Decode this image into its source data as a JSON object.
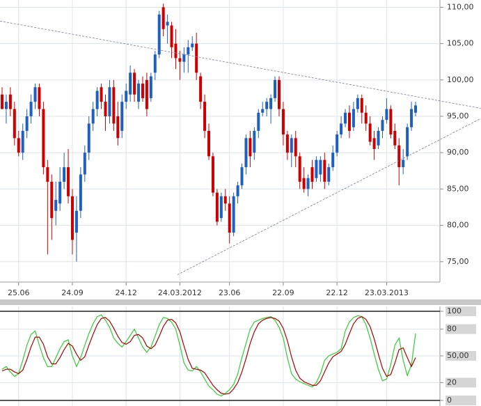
{
  "chart_data": [
    {
      "type": "candlestick",
      "categories": [
        null,
        null,
        null,
        null,
        "25.06",
        null,
        null,
        null,
        null,
        null,
        null,
        null,
        null,
        null,
        null,
        null,
        null,
        "24.09",
        null,
        null,
        null,
        null,
        null,
        null,
        null,
        null,
        null,
        null,
        null,
        null,
        "24.12",
        null,
        null,
        null,
        null,
        null,
        null,
        null,
        null,
        null,
        null,
        null,
        null,
        "24.03.2012",
        null,
        null,
        null,
        null,
        null,
        null,
        null,
        null,
        null,
        null,
        null,
        "23.06",
        null,
        null,
        null,
        null,
        null,
        null,
        null,
        null,
        null,
        null,
        null,
        null,
        "22.09",
        null,
        null,
        null,
        null,
        null,
        null,
        null,
        null,
        null,
        null,
        null,
        null,
        "22.12",
        null,
        null,
        null,
        null,
        null,
        null,
        null,
        null,
        null,
        null,
        null,
        "23.03.2013",
        null,
        null,
        null,
        null,
        null,
        null,
        null
      ],
      "open": [
        98,
        96,
        98,
        96,
        92,
        90,
        93,
        95,
        97,
        99,
        96,
        88,
        86,
        82,
        83,
        86,
        88,
        84,
        79,
        82,
        87,
        90,
        94,
        96,
        99,
        97,
        95,
        99,
        95,
        93,
        97,
        98,
        101,
        97,
        99.5,
        100,
        97.5,
        101,
        103.5,
        110,
        107.5,
        107.5,
        105,
        103,
        102.5,
        103.5,
        104.5,
        105,
        100.5,
        97,
        93,
        89.5,
        84.5,
        81,
        84,
        83,
        79,
        84,
        85.5,
        88,
        92,
        90,
        93,
        95.5,
        96,
        96,
        97.5,
        100,
        96,
        92.5,
        90,
        92,
        89.5,
        86.5,
        85,
        88,
        86.5,
        87,
        89,
        86,
        88,
        90,
        92.5,
        94,
        95.5,
        93.5,
        96,
        97.5,
        95.5,
        94,
        92,
        91,
        93,
        94.5,
        96,
        93,
        91,
        88,
        89.5,
        93.5,
        95.5
      ],
      "high": [
        99,
        98,
        99,
        97,
        93,
        94,
        96,
        98,
        99.5,
        99.5,
        97,
        89,
        87,
        86,
        88,
        90,
        90.5,
        85,
        84,
        88,
        91,
        95,
        97,
        99,
        99.5,
        98,
        100,
        100,
        97,
        98,
        99.5,
        102,
        101.5,
        100,
        100.5,
        101,
        101,
        104,
        109.5,
        110.5,
        109,
        108,
        107,
        104,
        104.5,
        105.5,
        106,
        106.5,
        101,
        98,
        94,
        90,
        85,
        84.5,
        85,
        84,
        84.5,
        86,
        88.5,
        92.5,
        93,
        93.5,
        96,
        97,
        97.5,
        98,
        100.5,
        100.5,
        97,
        93,
        92.5,
        93,
        90,
        88,
        87,
        89,
        89.5,
        89.5,
        90,
        88.5,
        91,
        93,
        95,
        96,
        96.5,
        97,
        98,
        98,
        96.5,
        95,
        93,
        93.5,
        95,
        97.5,
        96.5,
        94,
        92,
        90.5,
        94,
        97,
        97
      ],
      "low": [
        96,
        94,
        95,
        91,
        89.5,
        89,
        92,
        94,
        96,
        95,
        87,
        76,
        78,
        80,
        82,
        85,
        83,
        76,
        75,
        81,
        86,
        89,
        93,
        95,
        96,
        93,
        94,
        93,
        91,
        92,
        96,
        97,
        97,
        96,
        97,
        95,
        97,
        100,
        103,
        106,
        105,
        103,
        101.5,
        100,
        101,
        101,
        104,
        100,
        96,
        92,
        89,
        84,
        80,
        80.5,
        82,
        77.5,
        78.5,
        83,
        85,
        87,
        88,
        89,
        92,
        95,
        95,
        94,
        97,
        95,
        91,
        89,
        88,
        88,
        85,
        84.5,
        84,
        85,
        86,
        86,
        85,
        85.5,
        87.5,
        89.5,
        92,
        93.5,
        92,
        93,
        95.5,
        94,
        93,
        91,
        89,
        90.5,
        92,
        94,
        92,
        90.5,
        85.5,
        87,
        89,
        93,
        95
      ],
      "close": [
        96,
        97,
        96,
        92,
        90,
        93,
        95,
        97,
        99,
        96,
        88,
        86,
        81,
        83.5,
        86,
        88,
        84,
        78,
        82,
        87,
        90,
        94,
        96,
        98.5,
        97,
        95,
        99,
        94,
        92,
        97,
        98.5,
        101,
        98,
        99.5,
        97.5,
        96,
        100.5,
        103.5,
        109,
        107,
        108,
        104.5,
        103,
        102.5,
        103.5,
        104.5,
        105,
        101,
        97,
        93,
        89.5,
        84.5,
        80.5,
        84,
        83,
        79,
        84,
        85.5,
        88,
        92,
        89.5,
        93,
        95.5,
        96,
        97,
        97.5,
        100,
        96,
        92.5,
        90,
        92,
        89.5,
        86,
        85,
        86.5,
        86,
        89,
        89,
        86,
        88,
        90,
        92.5,
        94,
        95.5,
        93,
        96,
        97.5,
        95.5,
        94,
        91.5,
        90.5,
        93,
        94.5,
        96,
        92.5,
        91,
        88,
        89,
        93.5,
        96,
        96.5
      ],
      "up_color": "#1f5fbf",
      "down_color": "#cc0000",
      "ylim": [
        72.2,
        111
      ],
      "yticks": [
        {
          "value": 75,
          "label": "75,00"
        },
        {
          "value": 80,
          "label": "80,00"
        },
        {
          "value": 85,
          "label": "85,00"
        },
        {
          "value": 90,
          "label": "90,00"
        },
        {
          "value": 95,
          "label": "95,00"
        },
        {
          "value": 100,
          "label": "100,00"
        },
        {
          "value": 105,
          "label": "105,00"
        },
        {
          "value": 110,
          "label": "110,00"
        }
      ],
      "grid": true,
      "trendlines": [
        {
          "x": [
            -0.5,
            115.8
          ],
          "y": [
            108.1,
            96.1
          ],
          "color": "#7a7a9a"
        },
        {
          "x": [
            42.4,
            115.8
          ],
          "y": [
            73.2,
            94.7
          ],
          "color": "#7a7a9a"
        }
      ]
    },
    {
      "type": "line",
      "series": [
        {
          "color": "#33cc33",
          "values": [
            35,
            38,
            32,
            27,
            30,
            45,
            62,
            74,
            78,
            62,
            48,
            38,
            38,
            48,
            58,
            66,
            68,
            50,
            38,
            48,
            62,
            75,
            86,
            94,
            96,
            90,
            82,
            70,
            64,
            60,
            66,
            73,
            80,
            70,
            60,
            54,
            60,
            72,
            85,
            93,
            92,
            88,
            80,
            62,
            42,
            34,
            33,
            38,
            32,
            24,
            16,
            12,
            7,
            5,
            8,
            12,
            18,
            30,
            48,
            64,
            80,
            88,
            90,
            92,
            93,
            94,
            90,
            82,
            70,
            48,
            30,
            24,
            21,
            19,
            17,
            15,
            20,
            30,
            45,
            50,
            52,
            54,
            58,
            78,
            88,
            93,
            95,
            94,
            85,
            70,
            52,
            35,
            22,
            24,
            40,
            62,
            70,
            45,
            28,
            40,
            75
          ]
        },
        {
          "color": "#aa0000",
          "values": [
            33,
            35,
            35,
            32,
            30,
            34,
            46,
            60,
            71,
            71,
            63,
            49,
            41,
            41,
            48,
            57,
            64,
            61,
            52,
            45,
            49,
            62,
            74,
            85,
            92,
            93,
            89,
            81,
            72,
            65,
            63,
            66,
            73,
            74,
            70,
            61,
            58,
            62,
            72,
            83,
            90,
            91,
            87,
            77,
            61,
            46,
            36,
            35,
            34,
            31,
            24,
            17,
            12,
            8,
            7,
            8,
            13,
            20,
            32,
            47,
            64,
            77,
            86,
            90,
            92,
            93,
            92,
            89,
            81,
            67,
            49,
            34,
            25,
            21,
            19,
            17,
            17,
            22,
            32,
            42,
            49,
            52,
            55,
            63,
            75,
            86,
            92,
            94,
            91,
            83,
            69,
            52,
            36,
            27,
            29,
            42,
            57,
            59,
            48,
            38,
            48
          ]
        }
      ],
      "ylim": [
        0,
        100
      ],
      "yticks": [
        100,
        80,
        {
          "value": 50,
          "label": "50,00"
        },
        20,
        0
      ],
      "grid": true
    }
  ]
}
